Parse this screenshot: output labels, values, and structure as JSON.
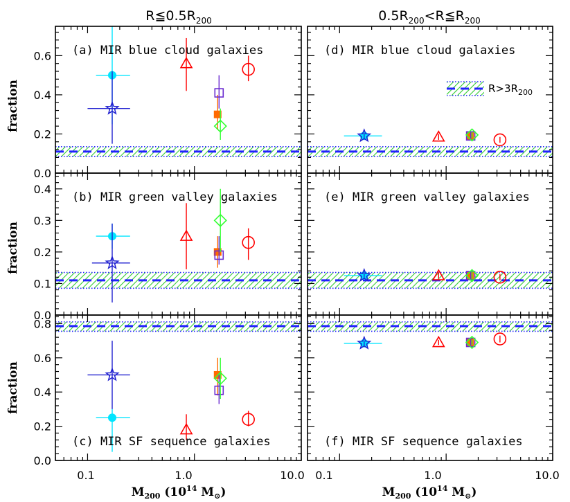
{
  "figure": {
    "col_titles": [
      {
        "text": "R≦0.5R",
        "sub": "200"
      },
      {
        "text": "0.5R",
        "sub": "200",
        "mid": "<R≦R",
        "sub2": "200"
      }
    ],
    "y_axis_label": "fraction",
    "x_axis_label": {
      "main": "M",
      "sub": "200",
      "rest": " (10",
      "sup": "14",
      "rest2": " M",
      "sun": "⊙",
      "close": ")"
    },
    "legend_label": {
      "main": "R>3R",
      "sub": "200"
    },
    "x_tick_labels": [
      "0.1",
      "1.0",
      "10.0"
    ]
  },
  "colors": {
    "cyan": "#00e5ff",
    "blue": "#2020d0",
    "red": "#ff0000",
    "orange": "#ff6a00",
    "purple": "#6a2bd0",
    "green": "#33ff33",
    "band_green": "#33cc33",
    "band_blue": "#2020ff"
  },
  "chart_data": [
    {
      "type": "scatter",
      "id": "a",
      "title": "(a) MIR blue cloud galaxies",
      "xlog": true,
      "xlim": [
        0.05,
        10.0
      ],
      "ylim": [
        0.0,
        0.75
      ],
      "yticks": [
        0.0,
        0.2,
        0.4,
        0.6
      ],
      "yticklabels": [
        "0.0",
        "0.2",
        "0.4",
        "0.6"
      ],
      "ref_band": {
        "y": 0.11,
        "lo": 0.085,
        "hi": 0.135
      },
      "points": [
        {
          "sym": "circle_filled",
          "color": "cyan",
          "x": 0.17,
          "y": 0.5,
          "ylo": 0.25,
          "yhi": 0.75,
          "xlo": 0.12,
          "xhi": 0.25
        },
        {
          "sym": "star",
          "color": "blue",
          "x": 0.17,
          "y": 0.33,
          "ylo": 0.15,
          "yhi": 0.52,
          "xlo": 0.1,
          "xhi": 0.25
        },
        {
          "sym": "triangle",
          "color": "red",
          "x": 0.84,
          "y": 0.56,
          "ylo": 0.42,
          "yhi": 0.69
        },
        {
          "sym": "square_filled",
          "color": "orange",
          "x": 1.65,
          "y": 0.3,
          "ylo": 0.22,
          "yhi": 0.4
        },
        {
          "sym": "square",
          "color": "purple",
          "x": 1.7,
          "y": 0.41,
          "ylo": 0.33,
          "yhi": 0.5
        },
        {
          "sym": "diamond",
          "color": "green",
          "x": 1.75,
          "y": 0.24,
          "ylo": 0.17,
          "yhi": 0.33
        },
        {
          "sym": "circle",
          "color": "red",
          "x": 3.2,
          "y": 0.53,
          "ylo": 0.47,
          "yhi": 0.6
        }
      ]
    },
    {
      "type": "scatter",
      "id": "d",
      "title": "(d) MIR blue cloud galaxies",
      "xlog": true,
      "xlim": [
        0.05,
        10.0
      ],
      "ylim": [
        0.0,
        0.75
      ],
      "yticks": [
        0.0,
        0.2,
        0.4,
        0.6
      ],
      "yticklabels": [],
      "ref_band": {
        "y": 0.11,
        "lo": 0.085,
        "hi": 0.135
      },
      "legend": true,
      "points": [
        {
          "sym": "circle_filled",
          "color": "cyan",
          "x": 0.17,
          "y": 0.19,
          "ylo": 0.175,
          "yhi": 0.205,
          "xlo": 0.11,
          "xhi": 0.25
        },
        {
          "sym": "star",
          "color": "blue",
          "x": 0.17,
          "y": 0.19,
          "ylo": 0.175,
          "yhi": 0.205
        },
        {
          "sym": "triangle",
          "color": "red",
          "x": 0.85,
          "y": 0.185,
          "ylo": 0.17,
          "yhi": 0.2
        },
        {
          "sym": "square_filled",
          "color": "orange",
          "x": 1.68,
          "y": 0.19,
          "ylo": 0.17,
          "yhi": 0.21
        },
        {
          "sym": "square",
          "color": "purple",
          "x": 1.7,
          "y": 0.19,
          "ylo": 0.17,
          "yhi": 0.21
        },
        {
          "sym": "diamond",
          "color": "green",
          "x": 1.75,
          "y": 0.195,
          "ylo": 0.18,
          "yhi": 0.21
        },
        {
          "sym": "circle",
          "color": "red",
          "x": 3.2,
          "y": 0.17,
          "ylo": 0.155,
          "yhi": 0.185
        }
      ]
    },
    {
      "type": "scatter",
      "id": "b",
      "title": "(b) MIR green valley galaxies",
      "xlog": true,
      "xlim": [
        0.05,
        10.0
      ],
      "ylim": [
        0.0,
        0.45
      ],
      "yticks": [
        0.0,
        0.1,
        0.2,
        0.3,
        0.4
      ],
      "yticklabels": [
        "0.0",
        "0.1",
        "0.2",
        "0.3",
        "0.4"
      ],
      "ref_band": {
        "y": 0.11,
        "lo": 0.085,
        "hi": 0.135
      },
      "points": [
        {
          "sym": "circle_filled",
          "color": "cyan",
          "x": 0.17,
          "y": 0.25,
          "ylo": 0.21,
          "yhi": 0.29,
          "xlo": 0.12,
          "xhi": 0.25
        },
        {
          "sym": "star",
          "color": "blue",
          "x": 0.17,
          "y": 0.165,
          "ylo": 0.04,
          "yhi": 0.29,
          "xlo": 0.11,
          "xhi": 0.25
        },
        {
          "sym": "triangle",
          "color": "red",
          "x": 0.84,
          "y": 0.25,
          "ylo": 0.145,
          "yhi": 0.355
        },
        {
          "sym": "square_filled",
          "color": "orange",
          "x": 1.65,
          "y": 0.2,
          "ylo": 0.15,
          "yhi": 0.25
        },
        {
          "sym": "square",
          "color": "purple",
          "x": 1.7,
          "y": 0.19,
          "ylo": 0.16,
          "yhi": 0.25
        },
        {
          "sym": "diamond",
          "color": "green",
          "x": 1.75,
          "y": 0.3,
          "ylo": 0.2,
          "yhi": 0.4
        },
        {
          "sym": "circle",
          "color": "red",
          "x": 3.2,
          "y": 0.23,
          "ylo": 0.175,
          "yhi": 0.275
        }
      ]
    },
    {
      "type": "scatter",
      "id": "e",
      "title": "(e) MIR green valley galaxies",
      "xlog": true,
      "xlim": [
        0.05,
        10.0
      ],
      "ylim": [
        0.0,
        0.45
      ],
      "yticks": [
        0.0,
        0.1,
        0.2,
        0.3,
        0.4
      ],
      "yticklabels": [],
      "ref_band": {
        "y": 0.11,
        "lo": 0.085,
        "hi": 0.135
      },
      "points": [
        {
          "sym": "circle_filled",
          "color": "cyan",
          "x": 0.17,
          "y": 0.125,
          "ylo": 0.115,
          "yhi": 0.135,
          "xlo": 0.11,
          "xhi": 0.25
        },
        {
          "sym": "star",
          "color": "blue",
          "x": 0.17,
          "y": 0.125,
          "ylo": 0.115,
          "yhi": 0.135
        },
        {
          "sym": "triangle",
          "color": "red",
          "x": 0.85,
          "y": 0.125,
          "ylo": 0.115,
          "yhi": 0.135
        },
        {
          "sym": "square_filled",
          "color": "orange",
          "x": 1.68,
          "y": 0.125,
          "ylo": 0.11,
          "yhi": 0.14
        },
        {
          "sym": "square",
          "color": "purple",
          "x": 1.7,
          "y": 0.125,
          "ylo": 0.11,
          "yhi": 0.14
        },
        {
          "sym": "diamond",
          "color": "green",
          "x": 1.75,
          "y": 0.125,
          "ylo": 0.11,
          "yhi": 0.14
        },
        {
          "sym": "circle",
          "color": "red",
          "x": 3.2,
          "y": 0.12,
          "ylo": 0.11,
          "yhi": 0.13
        }
      ]
    },
    {
      "type": "scatter",
      "id": "c",
      "title": "(c) MIR SF sequence galaxies",
      "xlog": true,
      "xlim": [
        0.05,
        10.0
      ],
      "ylim": [
        0.0,
        0.85
      ],
      "yticks": [
        0.0,
        0.2,
        0.4,
        0.6,
        0.8
      ],
      "yticklabels": [
        "0.0",
        "0.2",
        "0.4",
        "0.6",
        "0.8"
      ],
      "ref_band": {
        "y": 0.785,
        "lo": 0.755,
        "hi": 0.81
      },
      "points": [
        {
          "sym": "circle_filled",
          "color": "cyan",
          "x": 0.17,
          "y": 0.25,
          "ylo": 0.05,
          "yhi": 0.3,
          "xlo": 0.12,
          "xhi": 0.25
        },
        {
          "sym": "star",
          "color": "blue",
          "x": 0.17,
          "y": 0.5,
          "ylo": 0.3,
          "yhi": 0.7,
          "xlo": 0.1,
          "xhi": 0.25
        },
        {
          "sym": "triangle",
          "color": "red",
          "x": 0.84,
          "y": 0.18,
          "ylo": 0.12,
          "yhi": 0.27
        },
        {
          "sym": "square_filled",
          "color": "orange",
          "x": 1.65,
          "y": 0.5,
          "ylo": 0.38,
          "yhi": 0.6
        },
        {
          "sym": "square",
          "color": "purple",
          "x": 1.7,
          "y": 0.41,
          "ylo": 0.33,
          "yhi": 0.5
        },
        {
          "sym": "diamond",
          "color": "green",
          "x": 1.75,
          "y": 0.48,
          "ylo": 0.36,
          "yhi": 0.6
        },
        {
          "sym": "circle",
          "color": "red",
          "x": 3.2,
          "y": 0.24,
          "ylo": 0.2,
          "yhi": 0.29
        }
      ]
    },
    {
      "type": "scatter",
      "id": "f",
      "title": "(f) MIR SF sequence galaxies",
      "xlog": true,
      "xlim": [
        0.05,
        10.0
      ],
      "ylim": [
        0.0,
        0.85
      ],
      "yticks": [
        0.0,
        0.2,
        0.4,
        0.6,
        0.8
      ],
      "yticklabels": [],
      "ref_band": {
        "y": 0.785,
        "lo": 0.755,
        "hi": 0.81
      },
      "points": [
        {
          "sym": "circle_filled",
          "color": "cyan",
          "x": 0.17,
          "y": 0.685,
          "ylo": 0.67,
          "yhi": 0.7,
          "xlo": 0.11,
          "xhi": 0.25
        },
        {
          "sym": "star",
          "color": "blue",
          "x": 0.17,
          "y": 0.685,
          "ylo": 0.67,
          "yhi": 0.7
        },
        {
          "sym": "triangle",
          "color": "red",
          "x": 0.85,
          "y": 0.69,
          "ylo": 0.675,
          "yhi": 0.705
        },
        {
          "sym": "square_filled",
          "color": "orange",
          "x": 1.68,
          "y": 0.69,
          "ylo": 0.67,
          "yhi": 0.71
        },
        {
          "sym": "square",
          "color": "purple",
          "x": 1.7,
          "y": 0.69,
          "ylo": 0.67,
          "yhi": 0.71
        },
        {
          "sym": "diamond",
          "color": "green",
          "x": 1.75,
          "y": 0.69,
          "ylo": 0.675,
          "yhi": 0.705
        },
        {
          "sym": "circle",
          "color": "red",
          "x": 3.2,
          "y": 0.71,
          "ylo": 0.69,
          "yhi": 0.73
        }
      ]
    }
  ]
}
